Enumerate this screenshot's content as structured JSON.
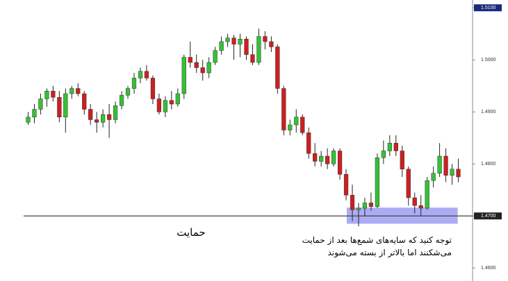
{
  "chart_data": {
    "type": "candlestick",
    "open": [
      1.488,
      1.489,
      1.4905,
      1.4925,
      1.494,
      1.4928,
      1.489,
      1.4935,
      1.4945,
      1.4935,
      1.4905,
      1.4885,
      1.488,
      1.4895,
      1.4885,
      1.4912,
      1.4932,
      1.4945,
      1.4965,
      1.4978,
      1.4965,
      1.4925,
      1.49,
      1.4922,
      1.4915,
      1.4935,
      1.5005,
      1.4995,
      1.4985,
      1.4975,
      1.4995,
      1.5018,
      1.5035,
      1.5042,
      1.503,
      1.504,
      1.501,
      1.4995,
      1.5045,
      1.5035,
      1.5025,
      1.4945,
      1.4865,
      1.4875,
      1.489,
      1.486,
      1.482,
      1.4805,
      1.4815,
      1.48,
      1.4825,
      1.478,
      1.474,
      1.4712,
      1.4715,
      1.4725,
      1.4718,
      1.4812,
      1.4825,
      1.484,
      1.4825,
      1.479,
      1.4735,
      1.472,
      1.4715,
      1.4768,
      1.4782,
      1.4815,
      1.4778,
      1.479
    ],
    "high": [
      1.49,
      1.4915,
      1.4935,
      1.4945,
      1.495,
      1.494,
      1.4945,
      1.495,
      1.4955,
      1.494,
      1.4915,
      1.49,
      1.4905,
      1.4915,
      1.492,
      1.494,
      1.495,
      1.4975,
      1.4985,
      1.499,
      1.497,
      1.4935,
      1.493,
      1.494,
      1.4945,
      1.501,
      1.5035,
      1.501,
      1.5,
      1.5005,
      1.5025,
      1.5045,
      1.505,
      1.5048,
      1.505,
      1.5045,
      1.503,
      1.506,
      1.5055,
      1.5045,
      1.503,
      1.495,
      1.4885,
      1.4905,
      1.4895,
      1.487,
      1.484,
      1.4825,
      1.483,
      1.483,
      1.483,
      1.479,
      1.476,
      1.4725,
      1.4735,
      1.4745,
      1.482,
      1.4845,
      1.4855,
      1.4855,
      1.4835,
      1.4795,
      1.4745,
      1.474,
      1.4775,
      1.4795,
      1.484,
      1.483,
      1.48,
      1.481
    ],
    "low": [
      1.4875,
      1.4878,
      1.4895,
      1.491,
      1.492,
      1.488,
      1.486,
      1.4925,
      1.493,
      1.4895,
      1.4875,
      1.486,
      1.487,
      1.485,
      1.4878,
      1.4905,
      1.4925,
      1.4935,
      1.4955,
      1.496,
      1.4915,
      1.4895,
      1.489,
      1.4905,
      1.491,
      1.4925,
      1.4985,
      1.4975,
      1.496,
      1.4965,
      1.499,
      1.501,
      1.5025,
      1.5,
      1.5005,
      1.5,
      1.499,
      1.499,
      1.502,
      1.5015,
      1.4935,
      1.4855,
      1.4855,
      1.486,
      1.4855,
      1.481,
      1.4795,
      1.4795,
      1.479,
      1.4795,
      1.477,
      1.473,
      1.469,
      1.468,
      1.47,
      1.471,
      1.4715,
      1.48,
      1.4815,
      1.4815,
      1.4775,
      1.472,
      1.4705,
      1.47,
      1.4712,
      1.4755,
      1.4775,
      1.4765,
      1.476,
      1.4765
    ],
    "close": [
      1.489,
      1.4905,
      1.4925,
      1.494,
      1.4928,
      1.489,
      1.4935,
      1.4945,
      1.4935,
      1.4905,
      1.4885,
      1.488,
      1.4895,
      1.4885,
      1.4912,
      1.4932,
      1.4945,
      1.4965,
      1.4978,
      1.4965,
      1.4925,
      1.49,
      1.4922,
      1.4915,
      1.4935,
      1.5005,
      1.4995,
      1.4985,
      1.4975,
      1.4995,
      1.5018,
      1.5035,
      1.5042,
      1.503,
      1.504,
      1.501,
      1.4995,
      1.5045,
      1.5035,
      1.5025,
      1.4945,
      1.4865,
      1.4875,
      1.489,
      1.486,
      1.482,
      1.4805,
      1.4815,
      1.48,
      1.4825,
      1.478,
      1.474,
      1.4712,
      1.4715,
      1.4725,
      1.4718,
      1.4812,
      1.4825,
      1.484,
      1.4825,
      1.479,
      1.4735,
      1.472,
      1.4715,
      1.4768,
      1.4782,
      1.4815,
      1.4778,
      1.479,
      1.4775
    ],
    "up_color": "#33c233",
    "down_color": "#cc2020",
    "ylim": [
      1.4575,
      1.5115
    ],
    "yticks": [
      {
        "value": 1.46,
        "label": "1.4600"
      },
      {
        "value": 1.47,
        "label": "1.4700"
      },
      {
        "value": 1.48,
        "label": "1.4800"
      },
      {
        "value": 1.49,
        "label": "1.4900"
      },
      {
        "value": 1.5,
        "label": "1.5000"
      },
      {
        "value": 1.51,
        "label": "1.5100"
      }
    ],
    "support_level": 1.47,
    "support_label": "حمایت",
    "highlight_zone": {
      "low": 1.4685,
      "high": 1.4716,
      "color": "#9d9df2"
    },
    "annotation": [
      "توجه کنید که سایه‌های شمع‌ها بعد از حمایت",
      "می‌شکنند اما بالاتر از بسته می‌شوند"
    ]
  }
}
